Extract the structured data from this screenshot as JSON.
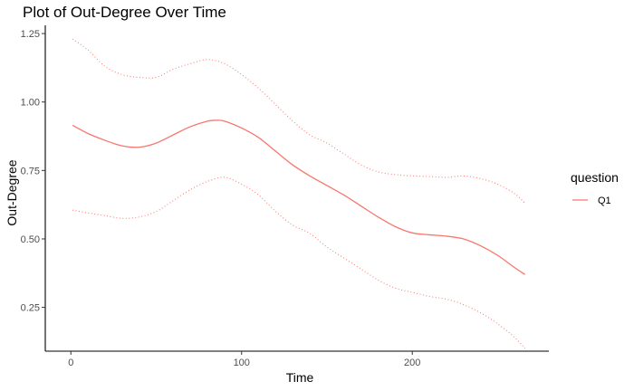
{
  "chart_data": {
    "type": "line",
    "title": "Plot of Out-Degree Over Time",
    "xlabel": "Time",
    "ylabel": "Out-Degree",
    "xlim": [
      -15,
      280
    ],
    "ylim": [
      0.09,
      1.28
    ],
    "x_ticks": [
      0,
      100,
      200
    ],
    "x_tick_labels": [
      "0",
      "100",
      "200"
    ],
    "y_ticks": [
      0.25,
      0.5,
      0.75,
      1.0,
      1.25
    ],
    "y_tick_labels": [
      "0.25",
      "0.50",
      "0.75",
      "1.00",
      "1.25"
    ],
    "grid": false,
    "legend": {
      "title": "question",
      "position": "right",
      "entries": [
        "Q1"
      ]
    },
    "series": [
      {
        "name": "Q1",
        "role": "fit",
        "color": "#F8766D",
        "style": "solid",
        "x": [
          1,
          10,
          20,
          30,
          40,
          50,
          60,
          70,
          80,
          85,
          90,
          100,
          110,
          120,
          130,
          140,
          150,
          160,
          170,
          180,
          190,
          200,
          210,
          220,
          230,
          240,
          250,
          260,
          266
        ],
        "y": [
          0.915,
          0.885,
          0.86,
          0.84,
          0.835,
          0.85,
          0.88,
          0.91,
          0.93,
          0.933,
          0.93,
          0.905,
          0.87,
          0.82,
          0.77,
          0.73,
          0.695,
          0.66,
          0.62,
          0.58,
          0.545,
          0.522,
          0.515,
          0.51,
          0.5,
          0.475,
          0.44,
          0.395,
          0.37
        ]
      },
      {
        "name": "Q1",
        "role": "upper bound",
        "color": "#F8766D",
        "style": "dotted",
        "x": [
          1,
          10,
          20,
          30,
          40,
          50,
          60,
          70,
          80,
          90,
          100,
          110,
          120,
          130,
          140,
          150,
          160,
          170,
          180,
          190,
          200,
          210,
          220,
          230,
          240,
          250,
          260,
          266
        ],
        "y": [
          1.23,
          1.19,
          1.13,
          1.1,
          1.09,
          1.09,
          1.12,
          1.14,
          1.155,
          1.14,
          1.1,
          1.05,
          0.99,
          0.93,
          0.88,
          0.85,
          0.81,
          0.77,
          0.745,
          0.735,
          0.73,
          0.728,
          0.725,
          0.73,
          0.72,
          0.7,
          0.665,
          0.63
        ]
      },
      {
        "name": "Q1",
        "role": "lower bound",
        "color": "#F8766D",
        "style": "dotted",
        "x": [
          1,
          10,
          20,
          30,
          40,
          50,
          60,
          70,
          80,
          90,
          100,
          110,
          120,
          130,
          140,
          150,
          160,
          170,
          180,
          190,
          200,
          210,
          220,
          230,
          240,
          250,
          260,
          266
        ],
        "y": [
          0.605,
          0.595,
          0.585,
          0.575,
          0.58,
          0.6,
          0.64,
          0.68,
          0.71,
          0.725,
          0.7,
          0.66,
          0.6,
          0.55,
          0.52,
          0.47,
          0.43,
          0.39,
          0.35,
          0.32,
          0.305,
          0.29,
          0.28,
          0.26,
          0.23,
          0.19,
          0.14,
          0.1
        ]
      }
    ]
  }
}
